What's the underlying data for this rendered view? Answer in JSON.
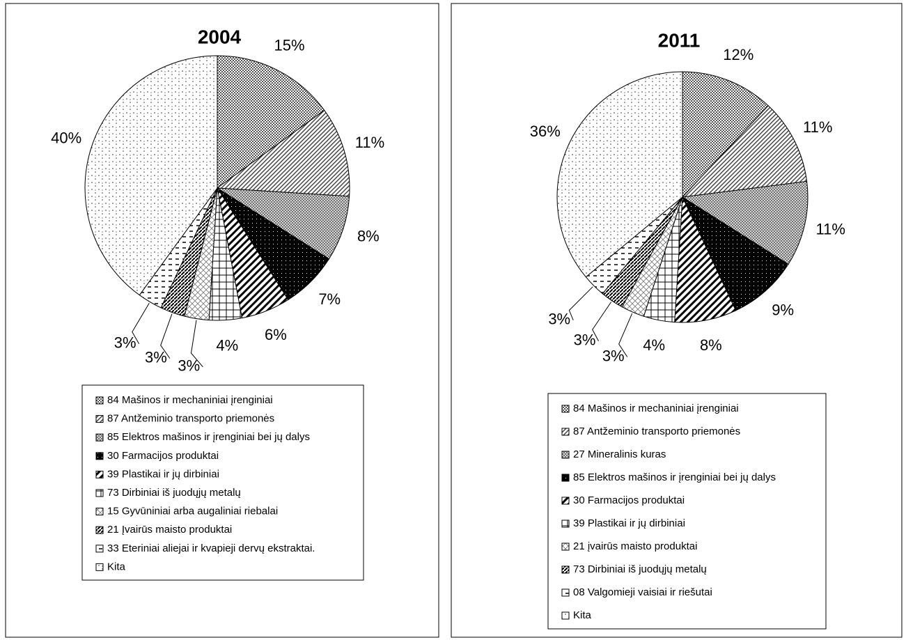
{
  "chart_data": [
    {
      "type": "pie",
      "title": "2004",
      "categories": [
        "84 Mašinos ir mechaniniai įrenginiai",
        "87 Antžeminio transporto priemonės",
        "85 Elektros mašinos ir įrenginiai bei jų dalys",
        "30 Farmacijos produktai",
        "39 Plastikai ir jų dirbiniai",
        "73 Dirbiniai iš juodųjų metalų",
        "15 Gyvūniniai arba augaliniai riebalai",
        "21 Įvairūs maisto produktai",
        "33 Eteriniai aliejai ir kvapieji dervų ekstraktai.",
        "Kita"
      ],
      "values": [
        15,
        11,
        8,
        7,
        6,
        4,
        3,
        3,
        3,
        40
      ],
      "value_labels": [
        "15%",
        "11%",
        "8%",
        "7%",
        "6%",
        "4%",
        "3%",
        "3%",
        "3%",
        "40%"
      ]
    },
    {
      "type": "pie",
      "title": "2011",
      "categories": [
        "84 Mašinos ir mechaniniai įrenginiai",
        "87 Antžeminio transporto priemonės",
        "27 Mineralinis kuras",
        "85 Elektros mašinos ir įrenginiai bei jų dalys",
        "30 Farmacijos produktai",
        "39 Plastikai ir jų dirbiniai",
        "21 įvairūs maisto produktai",
        "73 Dirbiniai iš juodųjų metalų",
        "08 Valgomieji vaisiai ir riešutai",
        "Kita"
      ],
      "values": [
        12,
        11,
        11,
        9,
        8,
        4,
        3,
        3,
        3,
        36
      ],
      "value_labels": [
        "12%",
        "11%",
        "11%",
        "9%",
        "8%",
        "4%",
        "3%",
        "3%",
        "3%",
        "36%"
      ]
    }
  ]
}
